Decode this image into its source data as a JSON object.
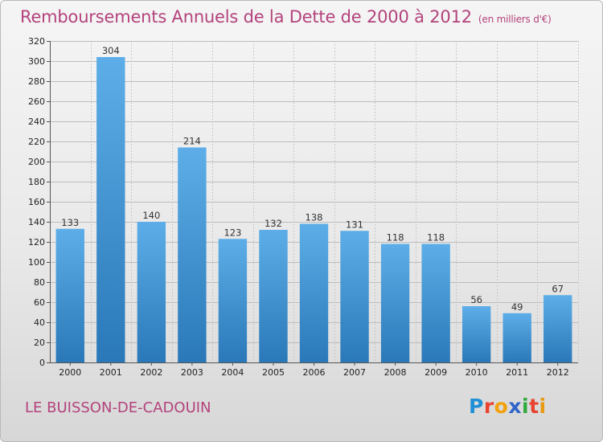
{
  "chart_data": {
    "type": "bar",
    "title": "Remboursements Annuels de la Dette de 2000 à 2012",
    "subtitle": "(en milliers d'€)",
    "categories": [
      "2000",
      "2001",
      "2002",
      "2003",
      "2004",
      "2005",
      "2006",
      "2007",
      "2008",
      "2009",
      "2010",
      "2011",
      "2012"
    ],
    "values": [
      133,
      304,
      140,
      214,
      123,
      132,
      138,
      131,
      118,
      118,
      56,
      49,
      67
    ],
    "ylim": [
      0,
      320
    ],
    "yticks": [
      0,
      20,
      40,
      60,
      80,
      100,
      120,
      140,
      160,
      180,
      200,
      220,
      240,
      260,
      280,
      300,
      320
    ],
    "grid": true,
    "bar_color_top": "#5daee8",
    "bar_color_bottom": "#2a78b8"
  },
  "footer": {
    "commune": "LE BUISSON-DE-CADOUIN",
    "logo": [
      "P",
      "r",
      "o",
      "x",
      "i",
      "t",
      "i"
    ]
  }
}
